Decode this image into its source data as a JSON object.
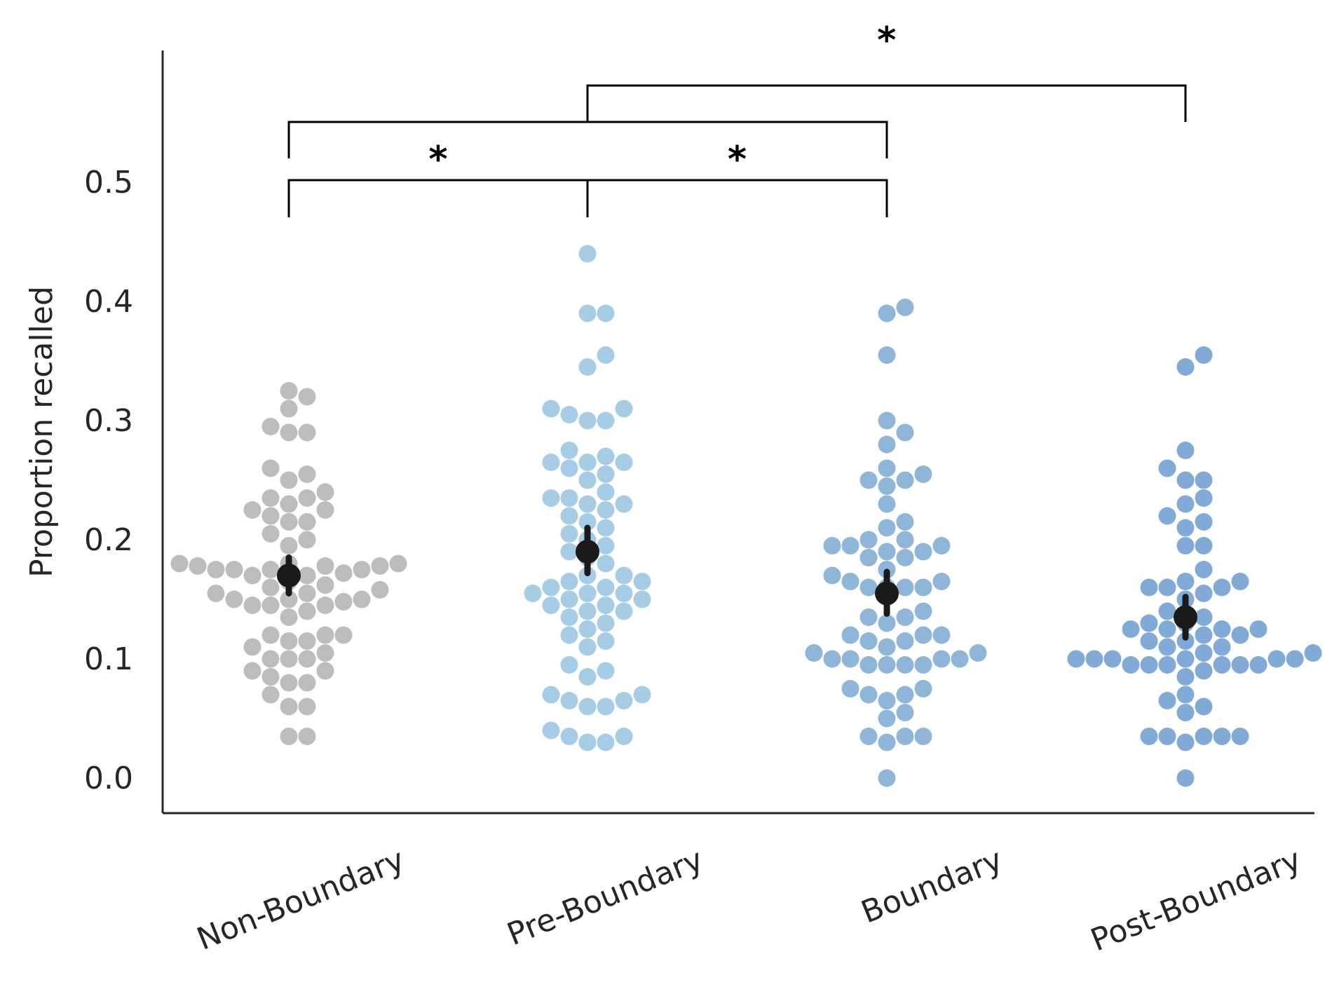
{
  "chart_data": {
    "type": "scatter",
    "subtype": "swarm",
    "ylabel": "Proportion recalled",
    "xlabel": "",
    "ylim": [
      -0.02,
      0.55
    ],
    "yticks": [
      0.0,
      0.1,
      0.2,
      0.3,
      0.4,
      0.5
    ],
    "ytick_labels": [
      "0.0",
      "0.1",
      "0.2",
      "0.3",
      "0.4",
      "0.5"
    ],
    "grid": false,
    "categories": [
      "Non-Boundary",
      "Pre-Boundary",
      "Boundary",
      "Post-Boundary"
    ],
    "series": [
      {
        "category": "Non-Boundary",
        "color": "#bdbdbd",
        "mean": 0.17,
        "ci": [
          0.155,
          0.185
        ],
        "values": [
          0.035,
          0.035,
          0.06,
          0.06,
          0.07,
          0.08,
          0.08,
          0.085,
          0.09,
          0.09,
          0.1,
          0.1,
          0.1,
          0.105,
          0.11,
          0.115,
          0.115,
          0.12,
          0.12,
          0.12,
          0.135,
          0.14,
          0.145,
          0.145,
          0.145,
          0.148,
          0.15,
          0.15,
          0.15,
          0.155,
          0.155,
          0.158,
          0.16,
          0.162,
          0.165,
          0.17,
          0.17,
          0.172,
          0.175,
          0.175,
          0.175,
          0.175,
          0.178,
          0.178,
          0.178,
          0.18,
          0.18,
          0.18,
          0.195,
          0.2,
          0.205,
          0.215,
          0.215,
          0.22,
          0.225,
          0.225,
          0.23,
          0.235,
          0.235,
          0.24,
          0.25,
          0.255,
          0.26,
          0.29,
          0.29,
          0.295,
          0.31,
          0.32,
          0.325
        ]
      },
      {
        "category": "Pre-Boundary",
        "color": "#a6cde5",
        "mean": 0.19,
        "ci": [
          0.172,
          0.21
        ],
        "values": [
          0.03,
          0.03,
          0.035,
          0.035,
          0.04,
          0.06,
          0.06,
          0.065,
          0.065,
          0.07,
          0.07,
          0.085,
          0.09,
          0.095,
          0.11,
          0.115,
          0.12,
          0.125,
          0.13,
          0.135,
          0.14,
          0.14,
          0.145,
          0.145,
          0.15,
          0.15,
          0.155,
          0.155,
          0.155,
          0.16,
          0.16,
          0.165,
          0.165,
          0.17,
          0.17,
          0.18,
          0.185,
          0.19,
          0.195,
          0.2,
          0.205,
          0.21,
          0.215,
          0.22,
          0.225,
          0.23,
          0.23,
          0.235,
          0.235,
          0.24,
          0.25,
          0.255,
          0.26,
          0.265,
          0.265,
          0.265,
          0.27,
          0.275,
          0.3,
          0.3,
          0.305,
          0.31,
          0.31,
          0.345,
          0.355,
          0.39,
          0.39,
          0.44
        ]
      },
      {
        "category": "Boundary",
        "color": "#8fb5d9",
        "mean": 0.155,
        "ci": [
          0.138,
          0.173
        ],
        "values": [
          0.0,
          0.03,
          0.035,
          0.035,
          0.035,
          0.05,
          0.055,
          0.065,
          0.07,
          0.07,
          0.075,
          0.075,
          0.095,
          0.095,
          0.095,
          0.095,
          0.1,
          0.1,
          0.1,
          0.1,
          0.105,
          0.105,
          0.11,
          0.115,
          0.115,
          0.12,
          0.12,
          0.12,
          0.13,
          0.135,
          0.135,
          0.14,
          0.16,
          0.16,
          0.16,
          0.16,
          0.165,
          0.165,
          0.17,
          0.175,
          0.185,
          0.185,
          0.19,
          0.19,
          0.195,
          0.195,
          0.195,
          0.2,
          0.2,
          0.21,
          0.215,
          0.23,
          0.245,
          0.25,
          0.25,
          0.255,
          0.26,
          0.28,
          0.29,
          0.3,
          0.355,
          0.39,
          0.395
        ]
      },
      {
        "category": "Post-Boundary",
        "color": "#82aad6",
        "mean": 0.135,
        "ci": [
          0.118,
          0.152
        ],
        "values": [
          0.0,
          0.03,
          0.035,
          0.035,
          0.035,
          0.035,
          0.035,
          0.055,
          0.06,
          0.065,
          0.07,
          0.085,
          0.09,
          0.095,
          0.095,
          0.095,
          0.095,
          0.095,
          0.095,
          0.1,
          0.1,
          0.1,
          0.1,
          0.1,
          0.1,
          0.105,
          0.105,
          0.11,
          0.11,
          0.115,
          0.115,
          0.12,
          0.12,
          0.125,
          0.125,
          0.125,
          0.125,
          0.13,
          0.13,
          0.135,
          0.14,
          0.15,
          0.155,
          0.16,
          0.16,
          0.16,
          0.165,
          0.165,
          0.175,
          0.195,
          0.195,
          0.21,
          0.215,
          0.22,
          0.23,
          0.235,
          0.25,
          0.25,
          0.26,
          0.275,
          0.345,
          0.355
        ]
      }
    ],
    "significance": [
      {
        "from": "Non-Boundary",
        "to": "Pre-Boundary",
        "label": "*"
      },
      {
        "from": "Pre-Boundary",
        "to": "Boundary",
        "label": "*"
      },
      {
        "from": "Non-Boundary",
        "to": "Boundary",
        "label": "*"
      },
      {
        "from": "Pre-Boundary",
        "to": "Post-Boundary",
        "label": "*"
      }
    ]
  }
}
